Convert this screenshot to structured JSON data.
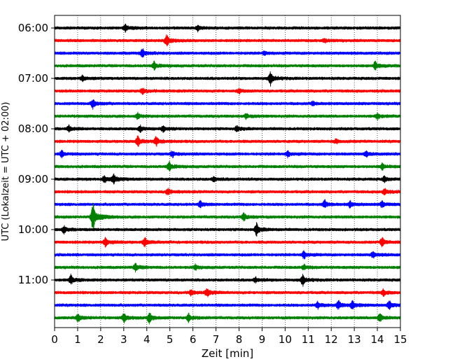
{
  "chart_data": {
    "type": "line",
    "chart_kind": "seismogram helicorder",
    "xlabel": "Zeit  [min]",
    "ylabel": "UTC (Lokalzeit = UTC + 02:00)",
    "xlim": [
      0,
      15
    ],
    "x_ticks": [
      "0",
      "1",
      "2",
      "3",
      "4",
      "5",
      "6",
      "7",
      "8",
      "9",
      "10",
      "11",
      "12",
      "13",
      "14",
      "15"
    ],
    "y_tick_labels": [
      "06:00",
      "07:00",
      "08:00",
      "09:00",
      "10:00",
      "11:00"
    ],
    "y_tick_trace_index": [
      0,
      4,
      8,
      12,
      16,
      20
    ],
    "grid": "vertical dotted at each minute",
    "trace_minutes": 15,
    "trace_colors": [
      "#000000",
      "#ff0000",
      "#0000ff",
      "#008000"
    ],
    "traces": [
      {
        "start": "06:00",
        "color": "#000000",
        "events": [
          {
            "x": 3.05,
            "amp": 0.35
          },
          {
            "x": 6.2,
            "amp": 0.25
          }
        ]
      },
      {
        "start": "06:15",
        "color": "#ff0000",
        "events": [
          {
            "x": 4.85,
            "amp": 0.6
          },
          {
            "x": 11.7,
            "amp": 0.2
          }
        ]
      },
      {
        "start": "06:30",
        "color": "#0000ff",
        "events": [
          {
            "x": 3.8,
            "amp": 0.45
          },
          {
            "x": 9.1,
            "amp": 0.2
          }
        ]
      },
      {
        "start": "06:45",
        "color": "#008000",
        "events": [
          {
            "x": 4.3,
            "amp": 0.4
          },
          {
            "x": 13.9,
            "amp": 0.4
          }
        ]
      },
      {
        "start": "07:00",
        "color": "#000000",
        "events": [
          {
            "x": 9.35,
            "amp": 0.7
          },
          {
            "x": 1.2,
            "amp": 0.3
          }
        ]
      },
      {
        "start": "07:15",
        "color": "#ff0000",
        "events": [
          {
            "x": 3.8,
            "amp": 0.3
          },
          {
            "x": 8.0,
            "amp": 0.2
          }
        ]
      },
      {
        "start": "07:30",
        "color": "#0000ff",
        "events": [
          {
            "x": 1.65,
            "amp": 0.45
          },
          {
            "x": 11.2,
            "amp": 0.2
          }
        ]
      },
      {
        "start": "07:45",
        "color": "#008000",
        "events": [
          {
            "x": 3.6,
            "amp": 0.3
          },
          {
            "x": 8.3,
            "amp": 0.25
          },
          {
            "x": 14.0,
            "amp": 0.3
          }
        ]
      },
      {
        "start": "08:00",
        "color": "#000000",
        "events": [
          {
            "x": 0.6,
            "amp": 0.3
          },
          {
            "x": 3.7,
            "amp": 0.3
          },
          {
            "x": 4.7,
            "amp": 0.3
          },
          {
            "x": 7.9,
            "amp": 0.3
          }
        ]
      },
      {
        "start": "08:15",
        "color": "#ff0000",
        "events": [
          {
            "x": 3.6,
            "amp": 0.55
          },
          {
            "x": 4.4,
            "amp": 0.45
          },
          {
            "x": 12.2,
            "amp": 0.2
          }
        ]
      },
      {
        "start": "08:30",
        "color": "#0000ff",
        "events": [
          {
            "x": 0.3,
            "amp": 0.3
          },
          {
            "x": 5.1,
            "amp": 0.3
          },
          {
            "x": 10.1,
            "amp": 0.3
          },
          {
            "x": 13.5,
            "amp": 0.25
          }
        ]
      },
      {
        "start": "08:45",
        "color": "#008000",
        "events": [
          {
            "x": 4.95,
            "amp": 0.5
          },
          {
            "x": 14.2,
            "amp": 0.3
          }
        ]
      },
      {
        "start": "09:00",
        "color": "#000000",
        "events": [
          {
            "x": 2.15,
            "amp": 0.4
          },
          {
            "x": 2.55,
            "amp": 0.45
          },
          {
            "x": 6.9,
            "amp": 0.25
          },
          {
            "x": 14.3,
            "amp": 0.3
          }
        ]
      },
      {
        "start": "09:15",
        "color": "#ff0000",
        "events": [
          {
            "x": 4.9,
            "amp": 0.35
          },
          {
            "x": 14.3,
            "amp": 0.35
          }
        ]
      },
      {
        "start": "09:30",
        "color": "#0000ff",
        "events": [
          {
            "x": 6.3,
            "amp": 0.3
          },
          {
            "x": 11.7,
            "amp": 0.4
          },
          {
            "x": 12.8,
            "amp": 0.3
          },
          {
            "x": 14.2,
            "amp": 0.3
          }
        ]
      },
      {
        "start": "09:45",
        "color": "#008000",
        "events": [
          {
            "x": 1.65,
            "amp": 1.5
          },
          {
            "x": 8.2,
            "amp": 0.4
          }
        ]
      },
      {
        "start": "10:00",
        "color": "#000000",
        "events": [
          {
            "x": 0.4,
            "amp": 0.35
          },
          {
            "x": 8.75,
            "amp": 0.6
          }
        ]
      },
      {
        "start": "10:15",
        "color": "#ff0000",
        "events": [
          {
            "x": 2.2,
            "amp": 0.5
          },
          {
            "x": 3.9,
            "amp": 0.45
          },
          {
            "x": 14.2,
            "amp": 0.45
          }
        ]
      },
      {
        "start": "10:30",
        "color": "#0000ff",
        "events": [
          {
            "x": 10.8,
            "amp": 0.4
          },
          {
            "x": 13.8,
            "amp": 0.3
          }
        ]
      },
      {
        "start": "10:45",
        "color": "#008000",
        "events": [
          {
            "x": 3.5,
            "amp": 0.4
          },
          {
            "x": 6.1,
            "amp": 0.25
          },
          {
            "x": 10.8,
            "amp": 0.25
          }
        ]
      },
      {
        "start": "11:00",
        "color": "#000000",
        "events": [
          {
            "x": 0.7,
            "amp": 0.45
          },
          {
            "x": 10.75,
            "amp": 0.55
          },
          {
            "x": 8.7,
            "amp": 0.25
          }
        ]
      },
      {
        "start": "11:15",
        "color": "#ff0000",
        "events": [
          {
            "x": 5.9,
            "amp": 0.3
          },
          {
            "x": 6.6,
            "amp": 0.4
          },
          {
            "x": 14.25,
            "amp": 0.35
          }
        ]
      },
      {
        "start": "11:30",
        "color": "#0000ff",
        "events": [
          {
            "x": 11.4,
            "amp": 0.35
          },
          {
            "x": 12.3,
            "amp": 0.45
          },
          {
            "x": 12.9,
            "amp": 0.45
          },
          {
            "x": 14.5,
            "amp": 0.4
          }
        ]
      },
      {
        "start": "11:45",
        "color": "#008000",
        "events": [
          {
            "x": 1.0,
            "amp": 0.4
          },
          {
            "x": 3.0,
            "amp": 0.45
          },
          {
            "x": 4.1,
            "amp": 0.5
          },
          {
            "x": 5.8,
            "amp": 0.4
          },
          {
            "x": 14.1,
            "amp": 0.45
          }
        ]
      }
    ]
  }
}
